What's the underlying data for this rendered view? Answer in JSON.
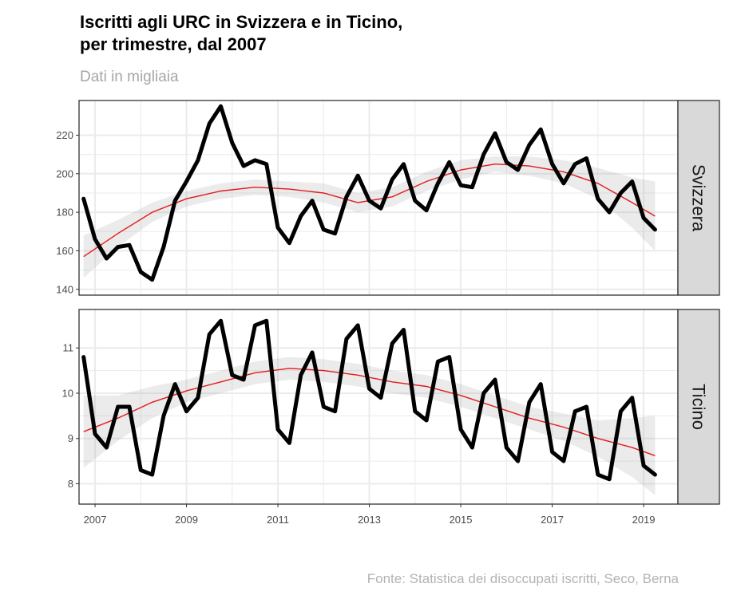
{
  "title": "Iscritti agli URC in Svizzera e in Ticino,\nper trimestre, dal 2007",
  "subtitle": "Dati in migliaia",
  "caption": "Fonte: Statistica dei disoccupati iscritti, Seco, Berna",
  "colors": {
    "data_line": "#000000",
    "smooth_line": "#e31a1c",
    "confidence_band": "#ebebeb",
    "strip_fill": "#d9d9d9",
    "grid": "#ebebeb"
  },
  "chart_data": {
    "type": "line",
    "x_ticks": [
      2007,
      2009,
      2011,
      2013,
      2015,
      2017,
      2019
    ],
    "xlim": [
      2006.65,
      2019.75
    ],
    "grid": true,
    "facets": [
      {
        "name": "Svizzera",
        "ylim": [
          137,
          238
        ],
        "y_ticks": [
          140,
          160,
          180,
          200,
          220
        ],
        "x": [
          2006.75,
          2007.0,
          2007.25,
          2007.5,
          2007.75,
          2008.0,
          2008.25,
          2008.5,
          2008.75,
          2009.0,
          2009.25,
          2009.5,
          2009.75,
          2010.0,
          2010.25,
          2010.5,
          2010.75,
          2011.0,
          2011.25,
          2011.5,
          2011.75,
          2012.0,
          2012.25,
          2012.5,
          2012.75,
          2013.0,
          2013.25,
          2013.5,
          2013.75,
          2014.0,
          2014.25,
          2014.5,
          2014.75,
          2015.0,
          2015.25,
          2015.5,
          2015.75,
          2016.0,
          2016.25,
          2016.5,
          2016.75,
          2017.0,
          2017.25,
          2017.5,
          2017.75,
          2018.0,
          2018.25,
          2018.5,
          2018.75,
          2019.0,
          2019.25
        ],
        "values": [
          187,
          166,
          156,
          162,
          163,
          149,
          145,
          162,
          186,
          196,
          207,
          226,
          235,
          216,
          204,
          207,
          205,
          172,
          164,
          178,
          186,
          171,
          169,
          188,
          199,
          186,
          182,
          197,
          205,
          186,
          181,
          195,
          206,
          194,
          193,
          210,
          221,
          206,
          202,
          215,
          223,
          205,
          195,
          205,
          208,
          187,
          180,
          190,
          196,
          177,
          171
        ],
        "smooth": {
          "x": [
            2006.75,
            2007.5,
            2008.25,
            2009.0,
            2009.75,
            2010.5,
            2011.25,
            2012.0,
            2012.75,
            2013.5,
            2014.25,
            2015.0,
            2015.75,
            2016.5,
            2017.25,
            2018.0,
            2018.75,
            2019.25
          ],
          "y": [
            157,
            169,
            180,
            187,
            191,
            193,
            192,
            190,
            185,
            188,
            196,
            202,
            205,
            204,
            201,
            195,
            185,
            178
          ],
          "lower": [
            146,
            162,
            175,
            183,
            187,
            189,
            188,
            185,
            180,
            183,
            191,
            197,
            201,
            199,
            195,
            187,
            172,
            160
          ],
          "upper": [
            168,
            176,
            185,
            191,
            195,
            197,
            196,
            195,
            190,
            193,
            201,
            207,
            209,
            209,
            207,
            203,
            198,
            196
          ]
        }
      },
      {
        "name": "Ticino",
        "ylim": [
          7.55,
          11.85
        ],
        "y_ticks": [
          8,
          9,
          10,
          11
        ],
        "x": [
          2006.75,
          2007.0,
          2007.25,
          2007.5,
          2007.75,
          2008.0,
          2008.25,
          2008.5,
          2008.75,
          2009.0,
          2009.25,
          2009.5,
          2009.75,
          2010.0,
          2010.25,
          2010.5,
          2010.75,
          2011.0,
          2011.25,
          2011.5,
          2011.75,
          2012.0,
          2012.25,
          2012.5,
          2012.75,
          2013.0,
          2013.25,
          2013.5,
          2013.75,
          2014.0,
          2014.25,
          2014.5,
          2014.75,
          2015.0,
          2015.25,
          2015.5,
          2015.75,
          2016.0,
          2016.25,
          2016.5,
          2016.75,
          2017.0,
          2017.25,
          2017.5,
          2017.75,
          2018.0,
          2018.25,
          2018.5,
          2018.75,
          2019.0,
          2019.25
        ],
        "values": [
          10.8,
          9.1,
          8.8,
          9.7,
          9.7,
          8.3,
          8.2,
          9.5,
          10.2,
          9.6,
          9.9,
          11.3,
          11.6,
          10.4,
          10.3,
          11.5,
          11.6,
          9.2,
          8.9,
          10.4,
          10.9,
          9.7,
          9.6,
          11.2,
          11.5,
          10.1,
          9.9,
          11.1,
          11.4,
          9.6,
          9.4,
          10.7,
          10.8,
          9.2,
          8.8,
          10.0,
          10.3,
          8.8,
          8.5,
          9.8,
          10.2,
          8.7,
          8.5,
          9.6,
          9.7,
          8.2,
          8.1,
          9.6,
          9.9,
          8.4,
          8.2
        ],
        "smooth": {
          "x": [
            2006.75,
            2007.5,
            2008.25,
            2009.0,
            2009.75,
            2010.5,
            2011.25,
            2012.0,
            2012.75,
            2013.5,
            2014.25,
            2015.0,
            2015.75,
            2016.5,
            2017.25,
            2018.0,
            2018.75,
            2019.25
          ],
          "y": [
            9.15,
            9.45,
            9.8,
            10.05,
            10.25,
            10.45,
            10.55,
            10.5,
            10.4,
            10.25,
            10.15,
            9.95,
            9.7,
            9.45,
            9.25,
            9.0,
            8.8,
            8.62
          ],
          "lower": [
            8.35,
            8.95,
            9.45,
            9.8,
            10.0,
            10.2,
            10.3,
            10.25,
            10.15,
            10.0,
            9.9,
            9.7,
            9.45,
            9.2,
            8.95,
            8.6,
            8.15,
            7.75
          ],
          "upper": [
            9.95,
            9.95,
            10.15,
            10.3,
            10.5,
            10.7,
            10.8,
            10.75,
            10.65,
            10.5,
            10.4,
            10.2,
            9.95,
            9.7,
            9.55,
            9.4,
            9.45,
            9.5
          ]
        }
      }
    ]
  }
}
